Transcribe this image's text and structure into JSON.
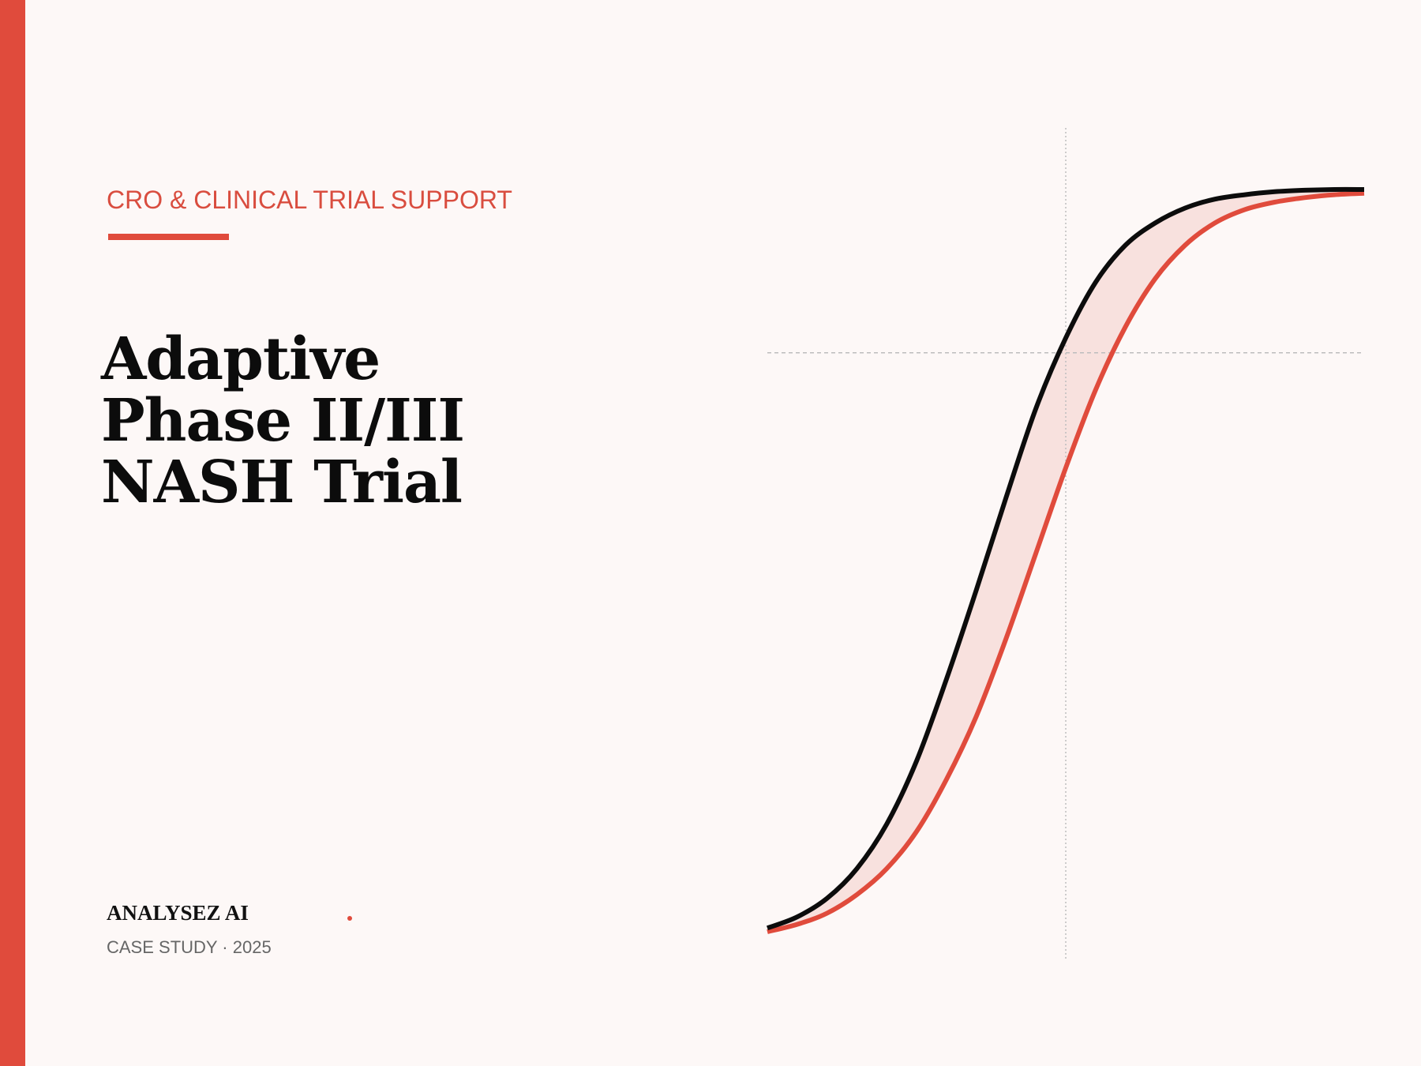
{
  "eyebrow": "CRO & CLINICAL TRIAL SUPPORT",
  "title": {
    "line1": "Adaptive",
    "line2": "Phase II/III",
    "line3": "NASH Trial"
  },
  "brand": "ANALYSEZ AI",
  "meta": "CASE STUDY · 2025",
  "colors": {
    "accent": "#e04b3c",
    "background": "#fdf8f7",
    "ink": "#0c0c0c",
    "band_fill": "#f8e1de"
  },
  "chart_data": {
    "type": "line",
    "title": "",
    "xlabel": "",
    "ylabel": "",
    "xlim": [
      0,
      1
    ],
    "ylim": [
      0,
      1
    ],
    "grid": false,
    "legend": "none",
    "reference_lines": {
      "vertical_x": 0.5,
      "horizontal_y": 0.78
    },
    "series": [
      {
        "color": "#0c0c0c",
        "x": [
          0,
          0.05,
          0.1,
          0.15,
          0.2,
          0.25,
          0.3,
          0.35,
          0.4,
          0.45,
          0.5,
          0.55,
          0.6,
          0.65,
          0.7,
          0.75,
          0.8,
          0.85,
          0.9,
          0.95,
          1
        ],
        "y": [
          0.005,
          0.02,
          0.045,
          0.085,
          0.145,
          0.23,
          0.34,
          0.46,
          0.585,
          0.705,
          0.8,
          0.875,
          0.925,
          0.955,
          0.975,
          0.987,
          0.993,
          0.997,
          0.999,
          1.0,
          1.0
        ]
      },
      {
        "color": "#e04b3c",
        "x": [
          0,
          0.05,
          0.1,
          0.15,
          0.2,
          0.25,
          0.3,
          0.35,
          0.4,
          0.45,
          0.5,
          0.55,
          0.6,
          0.65,
          0.7,
          0.75,
          0.8,
          0.85,
          0.9,
          0.95,
          1
        ],
        "y": [
          0.0,
          0.01,
          0.025,
          0.05,
          0.085,
          0.135,
          0.205,
          0.29,
          0.395,
          0.51,
          0.625,
          0.73,
          0.815,
          0.88,
          0.925,
          0.955,
          0.973,
          0.983,
          0.989,
          0.993,
          0.995
        ]
      }
    ]
  }
}
